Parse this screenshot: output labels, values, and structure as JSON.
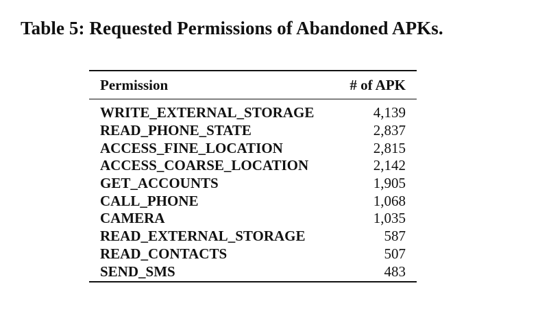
{
  "caption": "Table 5: Requested Permissions of Abandoned APKs.",
  "table": {
    "headers": {
      "permission": "Permission",
      "count": "# of APK"
    },
    "rows": [
      {
        "permission": "WRITE_EXTERNAL_STORAGE",
        "count": "4,139"
      },
      {
        "permission": "READ_PHONE_STATE",
        "count": "2,837"
      },
      {
        "permission": "ACCESS_FINE_LOCATION",
        "count": "2,815"
      },
      {
        "permission": "ACCESS_COARSE_LOCATION",
        "count": "2,142"
      },
      {
        "permission": "GET_ACCOUNTS",
        "count": "1,905"
      },
      {
        "permission": "CALL_PHONE",
        "count": "1,068"
      },
      {
        "permission": "CAMERA",
        "count": "1,035"
      },
      {
        "permission": "READ_EXTERNAL_STORAGE",
        "count": "587"
      },
      {
        "permission": "READ_CONTACTS",
        "count": "507"
      },
      {
        "permission": "SEND_SMS",
        "count": "483"
      }
    ]
  }
}
